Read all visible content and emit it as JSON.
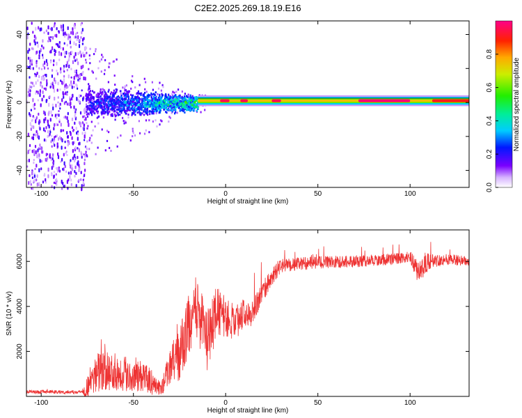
{
  "title": "C2E2.2025.269.18.19.E16",
  "chart_data": [
    {
      "type": "heatmap",
      "xlabel": "Height of straight line (km)",
      "ylabel": "Frequency (Hz)",
      "xlim": [
        -108,
        132
      ],
      "ylim": [
        -50,
        48
      ],
      "x_ticks": [
        -100,
        -50,
        0,
        50,
        100
      ],
      "y_ticks": [
        -40,
        -20,
        0,
        20,
        40
      ],
      "colorbar": {
        "label": "Normalized spectral amplitude",
        "range": [
          0,
          1
        ],
        "ticks": [
          0.0,
          0.2,
          0.4,
          0.6,
          0.8
        ],
        "tick_labels": [
          "0.0",
          "0.2",
          "0.4",
          "0.6",
          "0.8"
        ]
      },
      "regions": [
        {
          "x": [
            -108,
            -76
          ],
          "freq_spread": [
            -50,
            48
          ],
          "amplitude": [
            0.05,
            0.2
          ],
          "description": "broadband noise"
        },
        {
          "x": [
            -76,
            -15
          ],
          "freq_center": 0,
          "freq_halfwidth": [
            10,
            5
          ],
          "amplitude": [
            0.15,
            0.5
          ]
        },
        {
          "x": [
            -15,
            132
          ],
          "freq_center": 1,
          "freq_halfwidth": 3,
          "amplitude": [
            0.5,
            0.98
          ]
        }
      ],
      "peak_segments": [
        {
          "x": [
            -3,
            2
          ],
          "amplitude": 0.95
        },
        {
          "x": [
            8,
            12
          ],
          "amplitude": 0.95
        },
        {
          "x": [
            25,
            30
          ],
          "amplitude": 0.95
        },
        {
          "x": [
            72,
            100
          ],
          "amplitude": 0.98
        },
        {
          "x": [
            112,
            132
          ],
          "amplitude": 0.9
        }
      ]
    },
    {
      "type": "line",
      "xlabel": "Height of straight line (km)",
      "ylabel": "SNR (10 * v/v)",
      "xlim": [
        -108,
        132
      ],
      "ylim": [
        0,
        7400
      ],
      "x_ticks": [
        -100,
        -50,
        0,
        50,
        100
      ],
      "y_ticks": [
        2000,
        4000,
        6000
      ],
      "series": [
        {
          "name": "SNR",
          "color": "#ee3333",
          "trend_x": [
            -108,
            -78,
            -75,
            -70,
            -60,
            -50,
            -45,
            -38,
            -35,
            -30,
            -25,
            -20,
            -15,
            -10,
            -5,
            0,
            5,
            10,
            15,
            20,
            25,
            30,
            40,
            50,
            70,
            90,
            100,
            105,
            110,
            120,
            132
          ],
          "trend_y": [
            200,
            200,
            400,
            1100,
            1100,
            1000,
            900,
            500,
            300,
            1400,
            1800,
            3200,
            3800,
            2400,
            3800,
            3500,
            3300,
            3700,
            3900,
            4600,
            5300,
            5800,
            5900,
            5950,
            6000,
            6100,
            6200,
            5500,
            6000,
            6100,
            6000
          ],
          "noise_x": [
            -108,
            -78,
            -75,
            -70,
            -50,
            -40,
            -35,
            -25,
            -10,
            0,
            20,
            30,
            100,
            105,
            112,
            132
          ],
          "noise_amp": [
            80,
            80,
            600,
            900,
            800,
            550,
            300,
            1300,
            1400,
            900,
            500,
            300,
            250,
            600,
            300,
            200
          ]
        }
      ]
    }
  ]
}
